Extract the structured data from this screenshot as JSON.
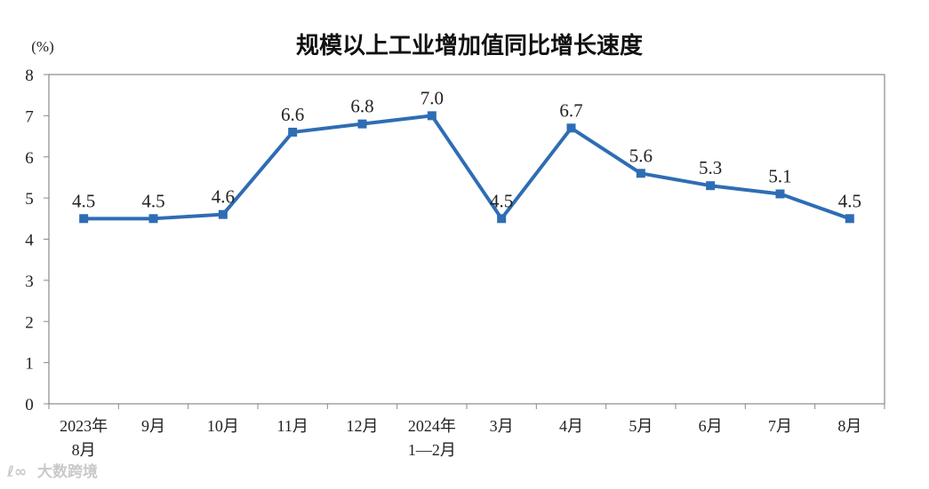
{
  "chart_data": {
    "type": "line",
    "title": "规模以上工业增加值同比增长速度",
    "ylabel": "(%)",
    "ylim": [
      0,
      8
    ],
    "yticks": [
      0,
      1,
      2,
      3,
      4,
      5,
      6,
      7,
      8
    ],
    "categories": [
      [
        "2023年",
        "8月"
      ],
      [
        "9月"
      ],
      [
        "10月"
      ],
      [
        "11月"
      ],
      [
        "12月"
      ],
      [
        "2024年",
        "1—2月"
      ],
      [
        "3月"
      ],
      [
        "4月"
      ],
      [
        "5月"
      ],
      [
        "6月"
      ],
      [
        "7月"
      ],
      [
        "8月"
      ]
    ],
    "series": [
      {
        "values": [
          4.5,
          4.5,
          4.6,
          6.6,
          6.8,
          7.0,
          4.5,
          6.7,
          5.6,
          5.3,
          5.1,
          4.5
        ],
        "labels": [
          "4.5",
          "4.5",
          "4.6",
          "6.6",
          "6.8",
          "7.0",
          "4.5",
          "6.7",
          "5.6",
          "5.3",
          "5.1",
          "4.5"
        ],
        "color": "#2e6db4"
      }
    ],
    "grid": false,
    "legend": "none"
  },
  "watermark": "大数跨境"
}
